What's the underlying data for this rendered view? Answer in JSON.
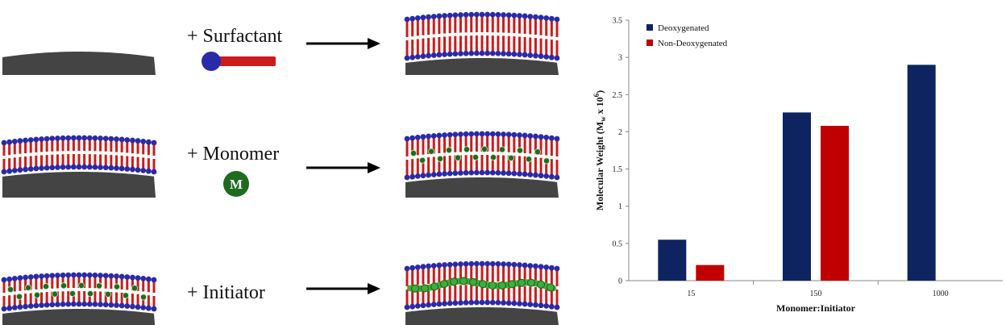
{
  "scheme": {
    "steps": [
      {
        "reagent": "+ Surfactant",
        "reagent_icon": "surfactant-molecule-icon"
      },
      {
        "reagent": "+ Monomer",
        "reagent_icon": "monomer-sphere-icon",
        "icon_letter": "M"
      },
      {
        "reagent": "+ Initiator",
        "reagent_icon": "none"
      }
    ]
  },
  "colors": {
    "head_blue": "#2a2aa8",
    "tail_red": "#cc1b1b",
    "substrate": "#444444",
    "monomer_green": "#1f6b1f",
    "polymer_green": "#3cae3c",
    "deoxygenated": "#0d2461",
    "non_deoxygenated": "#c00000"
  },
  "chart_data": {
    "type": "bar",
    "categories": [
      "15",
      "150",
      "1000"
    ],
    "series": [
      {
        "name": "Deoxygenated",
        "values": [
          0.55,
          2.26,
          2.9
        ]
      },
      {
        "name": "Non-Deoxygenated",
        "values": [
          0.21,
          2.08,
          null
        ]
      }
    ],
    "xlabel": "Monomer:Initiator",
    "ylabel_prefix": "Molecular Weight (M",
    "ylabel_sub": "w",
    "ylabel_mid": " x 10",
    "ylabel_sup": "6",
    "ylabel_suffix": ")",
    "ylim": [
      0,
      3.5
    ],
    "yticks": [
      "0",
      "0.5",
      "1",
      "1.5",
      "2",
      "2.5",
      "3",
      "3.5"
    ],
    "legend_position": "top-left",
    "grid": false
  }
}
